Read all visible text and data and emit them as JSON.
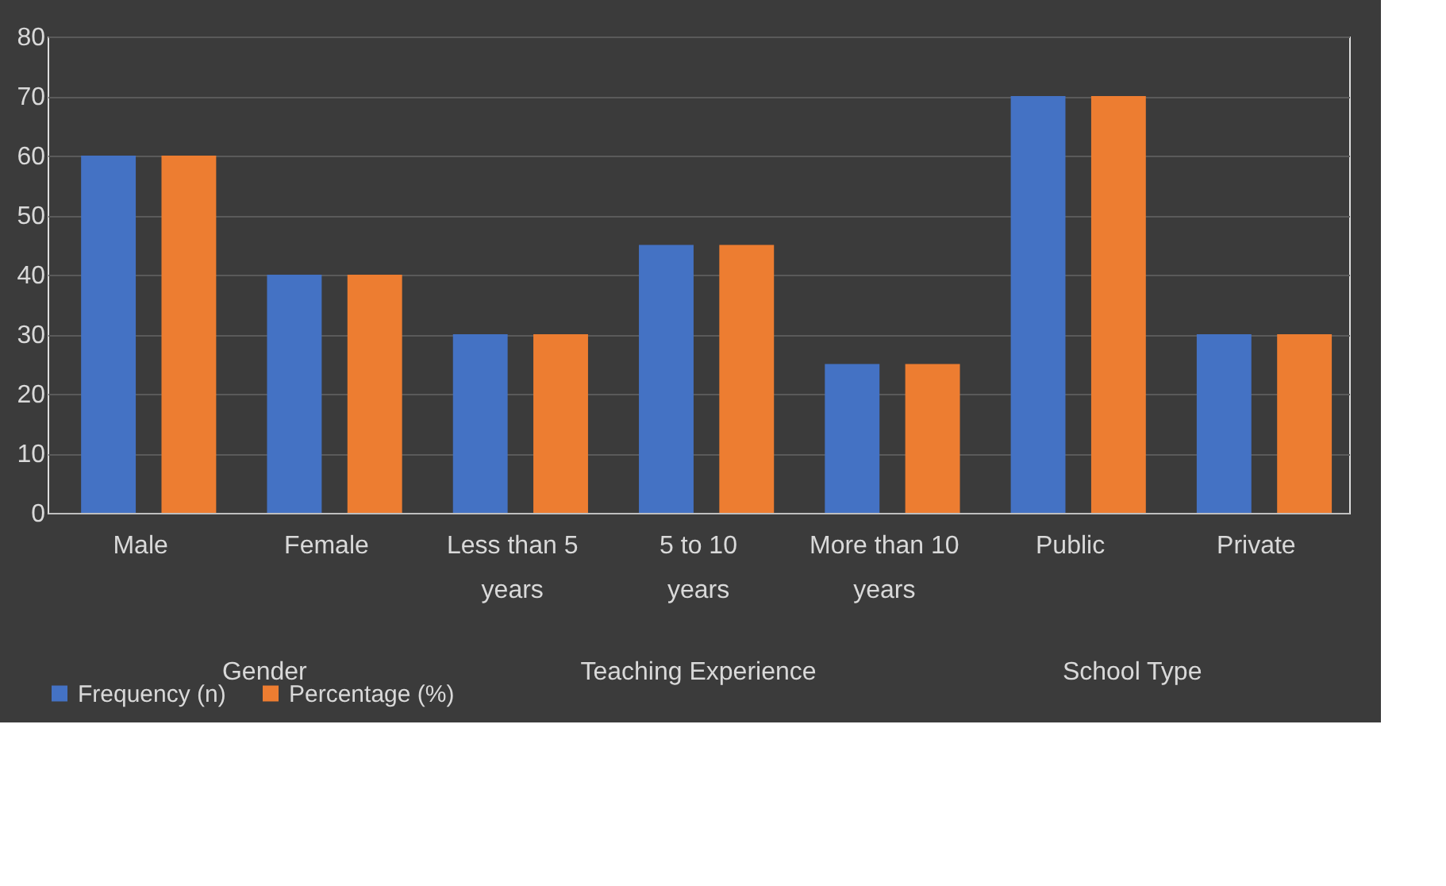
{
  "chart_data": {
    "type": "bar",
    "categories": [
      "Male",
      "Female",
      "Less than 5 years",
      "5 to 10 years",
      "More than 10 years",
      "Public",
      "Private"
    ],
    "series": [
      {
        "name": "Frequency (n)",
        "color": "#4472c4",
        "values": [
          60,
          40,
          30,
          45,
          25,
          70,
          30
        ]
      },
      {
        "name": "Percentage (%)",
        "color": "#ed7d31",
        "values": [
          60,
          40,
          30,
          45,
          25,
          70,
          30
        ]
      }
    ],
    "ylim": [
      0,
      80
    ],
    "yticks": [
      0,
      10,
      20,
      30,
      40,
      50,
      60,
      70,
      80
    ],
    "grid": "y",
    "legend": "bottom",
    "annotations": [
      "Gender",
      "Teaching Experience",
      "School Type"
    ]
  }
}
